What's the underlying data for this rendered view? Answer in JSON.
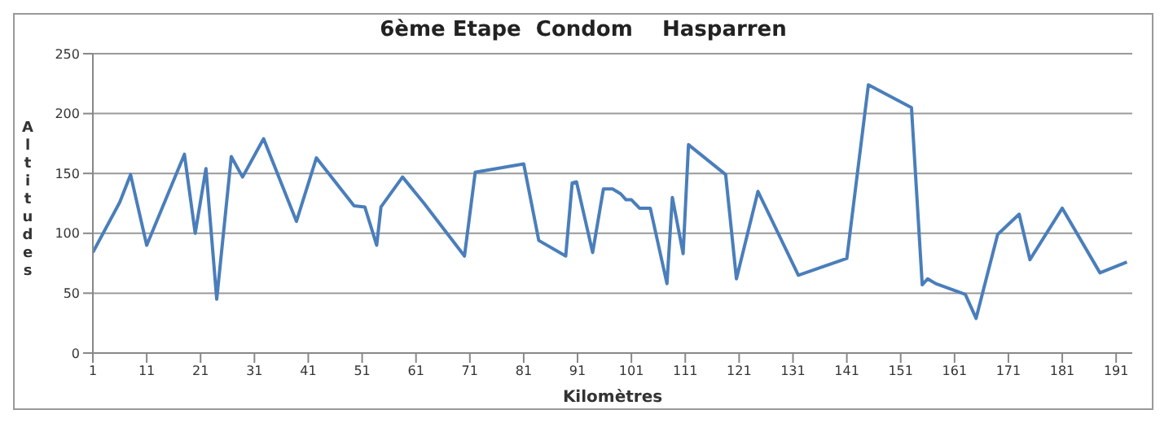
{
  "chart_data": {
    "type": "line",
    "title": "6ème Etape  Condom    Hasparren",
    "xlabel": "Kilomètres",
    "ylabel": "Altitudes",
    "x": [
      1,
      6,
      8,
      11,
      18,
      20,
      22,
      24,
      26.7,
      28.8,
      32.7,
      38.8,
      42.5,
      49.5,
      51.5,
      53.7,
      54.5,
      58.5,
      62.5,
      70,
      72,
      81,
      83.8,
      88.8,
      90,
      90.8,
      93.8,
      95.8,
      97.5,
      99,
      100,
      101,
      102.5,
      104.5,
      107.6,
      108.6,
      110.6,
      111.6,
      118.5,
      120.5,
      124.5,
      132,
      141,
      145,
      153,
      155,
      156,
      157.5,
      163,
      165,
      169,
      173,
      175,
      181,
      188,
      193
    ],
    "series": [
      {
        "color": "#4a7ebb",
        "values": [
          84,
          126,
          149,
          90,
          166,
          100,
          154,
          45,
          164,
          147,
          179,
          110,
          163,
          123,
          122,
          90,
          122,
          147,
          125,
          81,
          151,
          158,
          94,
          81,
          142,
          143,
          84,
          137,
          137,
          133,
          128,
          128,
          121,
          121,
          58,
          130,
          83,
          174,
          149,
          62,
          135,
          65,
          79,
          224,
          205,
          57,
          62,
          58,
          49,
          29,
          99,
          116,
          78,
          121,
          67,
          76
        ]
      }
    ],
    "xlim": [
      1,
      194
    ],
    "xticks": [
      1,
      11,
      21,
      31,
      41,
      51,
      61,
      71,
      81,
      91,
      101,
      111,
      121,
      131,
      141,
      151,
      161,
      171,
      181,
      191
    ],
    "ylim": [
      0,
      250
    ],
    "yticks": [
      0,
      50,
      100,
      150,
      200,
      250
    ],
    "grid": "y",
    "marker": "none",
    "line_style": "solid"
  }
}
